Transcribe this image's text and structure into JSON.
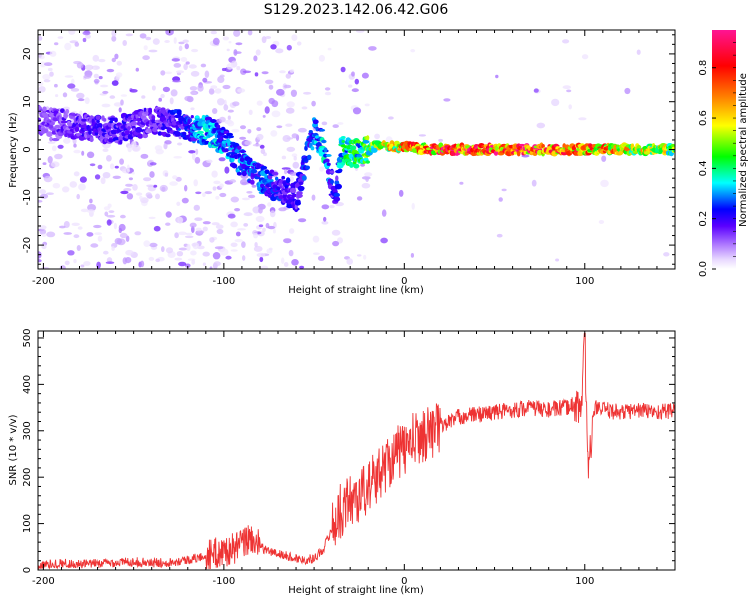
{
  "title": "S129.2023.142.06.42.G06",
  "chart_data": [
    {
      "type": "heatmap",
      "xlabel": "Height of straight line (km)",
      "ylabel": "Frequency (Hz)",
      "xlim": [
        -203,
        150
      ],
      "ylim": [
        -25,
        25
      ],
      "xticks": [
        -200,
        -100,
        0,
        100
      ],
      "yticks": [
        -20,
        -10,
        0,
        10,
        20
      ],
      "colorbar": {
        "label": "Normalized spectral amplitude",
        "range": [
          0,
          0.95
        ],
        "ticks": [
          "0.0",
          "0.2",
          "0.4",
          "0.6",
          "0.8"
        ],
        "tick_values": [
          0,
          0.2,
          0.4,
          0.6,
          0.8
        ],
        "colors": [
          "#ffffff",
          "#d8b0ff",
          "#8a2be2",
          "#5500ff",
          "#0000ff",
          "#00ffff",
          "#00ff00",
          "#ffff00",
          "#ff7f00",
          "#ff0000",
          "#ff1493"
        ]
      },
      "ridge": [
        {
          "x": -200,
          "y": 6,
          "a": 0.15
        },
        {
          "x": -180,
          "y": 5,
          "a": 0.18
        },
        {
          "x": -160,
          "y": 4,
          "a": 0.2
        },
        {
          "x": -140,
          "y": 6,
          "a": 0.18
        },
        {
          "x": -120,
          "y": 5,
          "a": 0.25
        },
        {
          "x": -110,
          "y": 4,
          "a": 0.35
        },
        {
          "x": -100,
          "y": 2,
          "a": 0.3
        },
        {
          "x": -90,
          "y": -3,
          "a": 0.3
        },
        {
          "x": -80,
          "y": -6,
          "a": 0.28
        },
        {
          "x": -70,
          "y": -8,
          "a": 0.25
        },
        {
          "x": -60,
          "y": -10,
          "a": 0.2
        },
        {
          "x": -50,
          "y": 4,
          "a": 0.3
        },
        {
          "x": -45,
          "y": 1,
          "a": 0.35
        },
        {
          "x": -38,
          "y": -10,
          "a": 0.2
        },
        {
          "x": -35,
          "y": 0,
          "a": 0.4
        },
        {
          "x": -25,
          "y": -1,
          "a": 0.45
        },
        {
          "x": -15,
          "y": 1,
          "a": 0.55
        },
        {
          "x": 0,
          "y": 0.5,
          "a": 0.7
        },
        {
          "x": 20,
          "y": 0,
          "a": 0.85
        },
        {
          "x": 40,
          "y": 0,
          "a": 0.85
        },
        {
          "x": 60,
          "y": 0,
          "a": 0.85
        },
        {
          "x": 80,
          "y": 0,
          "a": 0.85
        },
        {
          "x": 100,
          "y": 0,
          "a": 0.8
        },
        {
          "x": 120,
          "y": 0,
          "a": 0.65
        },
        {
          "x": 150,
          "y": 0,
          "a": 0.55
        }
      ]
    },
    {
      "type": "line",
      "xlabel": "Height of straight line (km)",
      "ylabel": "SNR (10 * v/v)",
      "xlim": [
        -203,
        150
      ],
      "ylim": [
        0,
        515
      ],
      "xticks": [
        -200,
        -100,
        0,
        100
      ],
      "yticks": [
        0,
        100,
        200,
        300,
        400,
        500
      ],
      "line_color": "#ee3333",
      "series": [
        {
          "x": [
            -203,
            -190,
            -180,
            -170,
            -160,
            -150,
            -140,
            -130,
            -120,
            -110,
            -100,
            -95,
            -90,
            -85,
            -80,
            -75,
            -70,
            -65,
            -60,
            -55,
            -50,
            -45,
            -40,
            -35,
            -30,
            -25,
            -20,
            -15,
            -10,
            -5,
            0,
            5,
            10,
            15,
            20,
            25,
            30,
            40,
            50,
            60,
            70,
            80,
            90,
            95,
            98,
            100,
            102,
            105,
            110,
            120,
            130,
            140,
            150
          ],
          "values": [
            10,
            15,
            12,
            14,
            16,
            18,
            15,
            17,
            22,
            30,
            40,
            45,
            55,
            70,
            50,
            40,
            35,
            30,
            25,
            22,
            25,
            45,
            90,
            130,
            150,
            160,
            180,
            200,
            230,
            250,
            260,
            280,
            290,
            300,
            310,
            320,
            330,
            335,
            340,
            345,
            350,
            345,
            350,
            360,
            340,
            500,
            200,
            350,
            345,
            340,
            345,
            340,
            345
          ]
        }
      ]
    }
  ]
}
